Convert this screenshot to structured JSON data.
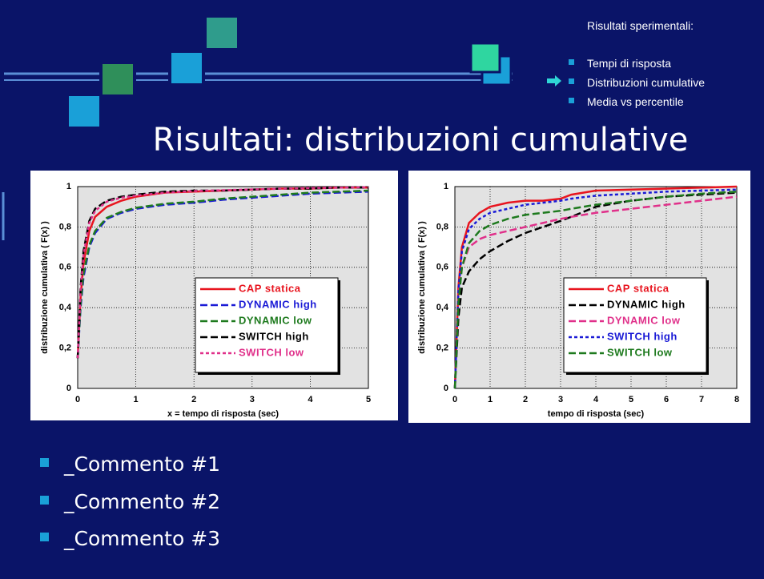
{
  "slide": {
    "section": "Risultati sperimentali:",
    "nav": [
      "Tempi di risposta",
      "Distribuzioni cumulative",
      "Media vs percentile"
    ],
    "title": "Risultati: distribuzioni cumulative",
    "bullets": [
      "_Commento #1",
      "_Commento #2",
      "_Commento #3"
    ]
  },
  "chart_data": [
    {
      "type": "line",
      "x_label": "x = tempo di risposta (sec)",
      "y_label": "distribuzione cumulativa ( F(x) )",
      "xlim": [
        0,
        5
      ],
      "xticks": [
        0,
        1,
        2,
        3,
        4,
        5
      ],
      "ylim": [
        0,
        1
      ],
      "yticks": [
        0,
        {
          "value": 0.2,
          "label": "0,2"
        },
        {
          "value": 0.4,
          "label": "0,4"
        },
        {
          "value": 0.6,
          "label": "0,6"
        },
        {
          "value": 0.8,
          "label": "0,8"
        },
        1
      ],
      "grid": true,
      "legend": "lower right",
      "x": [
        0,
        0.05,
        0.1,
        0.2,
        0.3,
        0.5,
        0.75,
        1,
        1.5,
        2,
        2.5,
        3,
        3.5,
        4,
        4.5,
        5
      ],
      "series": [
        {
          "name": "CAP statica",
          "color": "#e8141e",
          "linestyle": "solid",
          "values": [
            0.15,
            0.45,
            0.62,
            0.78,
            0.85,
            0.9,
            0.93,
            0.95,
            0.97,
            0.975,
            0.98,
            0.985,
            0.99,
            0.99,
            0.995,
            0.995
          ]
        },
        {
          "name": "DYNAMIC high",
          "color": "#1a1ad6",
          "linestyle": "dashed",
          "values": [
            0.15,
            0.4,
            0.55,
            0.7,
            0.77,
            0.84,
            0.87,
            0.89,
            0.91,
            0.92,
            0.935,
            0.945,
            0.955,
            0.965,
            0.97,
            0.975
          ]
        },
        {
          "name": "DYNAMIC low",
          "color": "#1e7a1e",
          "linestyle": "dashed",
          "values": [
            0.15,
            0.42,
            0.57,
            0.71,
            0.78,
            0.845,
            0.875,
            0.895,
            0.915,
            0.925,
            0.94,
            0.95,
            0.96,
            0.97,
            0.975,
            0.98
          ]
        },
        {
          "name": "SWITCH high",
          "color": "#000000",
          "linestyle": "dashed",
          "values": [
            0.15,
            0.5,
            0.68,
            0.83,
            0.89,
            0.93,
            0.95,
            0.96,
            0.975,
            0.98,
            0.98,
            0.985,
            0.99,
            0.99,
            0.995,
            0.995
          ]
        },
        {
          "name": "SWITCH low",
          "color": "#e0308a",
          "linestyle": "dotted",
          "values": [
            0.15,
            0.48,
            0.66,
            0.82,
            0.88,
            0.925,
            0.945,
            0.955,
            0.97,
            0.978,
            0.982,
            0.986,
            0.99,
            0.993,
            0.995,
            0.997
          ]
        }
      ]
    },
    {
      "type": "line",
      "x_label": "tempo di risposta (sec)",
      "y_label": "distribuzione cumulativa ( F(x) )",
      "xlim": [
        0,
        8
      ],
      "xticks": [
        0,
        1,
        2,
        3,
        4,
        5,
        6,
        7,
        8
      ],
      "ylim": [
        0,
        1
      ],
      "yticks": [
        0,
        {
          "value": 0.2,
          "label": "0,2"
        },
        {
          "value": 0.4,
          "label": "0,4"
        },
        {
          "value": 0.6,
          "label": "0,6"
        },
        {
          "value": 0.8,
          "label": "0,8"
        },
        1
      ],
      "grid": true,
      "legend": "lower right",
      "x": [
        0,
        0.1,
        0.2,
        0.4,
        0.7,
        1,
        1.5,
        2,
        2.5,
        3,
        3.3,
        4,
        5,
        6,
        7,
        8
      ],
      "series": [
        {
          "name": "CAP statica",
          "color": "#e8141e",
          "linestyle": "solid",
          "values": [
            0,
            0.5,
            0.7,
            0.82,
            0.87,
            0.9,
            0.92,
            0.93,
            0.93,
            0.94,
            0.96,
            0.98,
            0.985,
            0.99,
            0.995,
            1
          ]
        },
        {
          "name": "DYNAMIC high",
          "color": "#000000",
          "linestyle": "dashed",
          "values": [
            0,
            0.35,
            0.5,
            0.58,
            0.64,
            0.68,
            0.73,
            0.77,
            0.8,
            0.83,
            0.85,
            0.9,
            0.93,
            0.95,
            0.96,
            0.97
          ]
        },
        {
          "name": "DYNAMIC low",
          "color": "#e0308a",
          "linestyle": "dashed",
          "values": [
            0,
            0.45,
            0.6,
            0.7,
            0.74,
            0.76,
            0.78,
            0.8,
            0.82,
            0.84,
            0.85,
            0.87,
            0.89,
            0.91,
            0.93,
            0.95
          ]
        },
        {
          "name": "SWITCH high",
          "color": "#1a1ad6",
          "linestyle": "dotted",
          "values": [
            0,
            0.48,
            0.68,
            0.79,
            0.84,
            0.87,
            0.89,
            0.91,
            0.92,
            0.93,
            0.94,
            0.955,
            0.965,
            0.975,
            0.98,
            0.985
          ]
        },
        {
          "name": "SWITCH low",
          "color": "#1e7a1e",
          "linestyle": "dashed",
          "values": [
            0,
            0.42,
            0.6,
            0.72,
            0.78,
            0.81,
            0.84,
            0.86,
            0.87,
            0.88,
            0.89,
            0.91,
            0.93,
            0.95,
            0.965,
            0.975
          ]
        }
      ]
    }
  ]
}
